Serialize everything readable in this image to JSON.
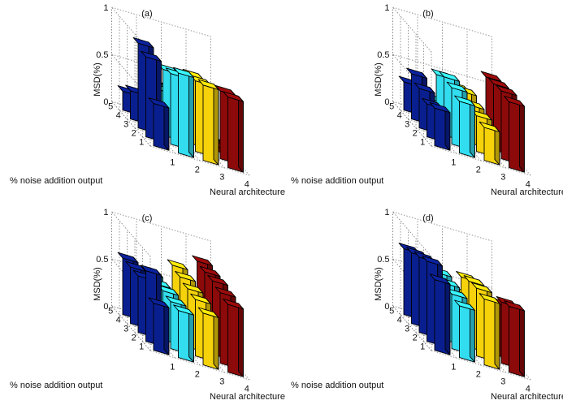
{
  "figure": {
    "axis_labels": {
      "x": "Neural architecture",
      "y": "% noise addition output",
      "z": "MSD(%)"
    }
  },
  "colors": {
    "architecture_1": "#0a1f8f",
    "architecture_2": "#33ddf0",
    "architecture_3": "#f5d20a",
    "architecture_4": "#8c0a0a",
    "edge": "#000000",
    "grid": "#7a7a7a"
  },
  "chart_data": [
    {
      "type": "bar3d",
      "title": "(a)",
      "xlabel": "Neural architecture",
      "ylabel": "% noise addition output",
      "zlabel": "MSD(%)",
      "x_ticks": [
        "1",
        "2",
        "3",
        "4"
      ],
      "y_ticks": [
        "1",
        "2",
        "3",
        "4",
        "5"
      ],
      "z_ticks": [
        "0",
        "0.5",
        "1"
      ],
      "zlim": [
        0,
        1
      ],
      "grid": true,
      "values": [
        [
          0.45,
          0.85,
          0.9,
          0.3,
          0.2
        ],
        [
          0.85,
          0.75,
          0.7,
          0.4,
          0.4
        ],
        [
          0.8,
          0.75,
          0.72,
          0.6,
          0.55
        ],
        [
          0.75,
          0.72,
          0.05,
          0.05,
          0.05
        ]
      ]
    },
    {
      "type": "bar3d",
      "title": "(b)",
      "xlabel": "Neural architecture",
      "ylabel": "% noise addition output",
      "zlabel": "MSD(%)",
      "x_ticks": [
        "1",
        "2",
        "3",
        "4"
      ],
      "y_ticks": [
        "1",
        "2",
        "3",
        "4",
        "5"
      ],
      "z_ticks": [
        "0",
        "0.5",
        "1"
      ],
      "zlim": [
        0,
        1
      ],
      "grid": true,
      "values": [
        [
          0.4,
          0.35,
          0.42,
          0.48,
          0.3
        ],
        [
          0.55,
          0.6,
          0.62,
          0.55,
          0.2
        ],
        [
          0.35,
          0.38,
          0.4,
          0.45,
          0.4
        ],
        [
          0.7,
          0.72,
          0.7,
          0.68,
          0.1
        ]
      ]
    },
    {
      "type": "bar3d",
      "title": "(c)",
      "xlabel": "Neural architecture",
      "ylabel": "% noise addition output",
      "zlabel": "MSD(%)",
      "x_ticks": [
        "1",
        "2",
        "3",
        "4"
      ],
      "y_ticks": [
        "1",
        "2",
        "3",
        "4",
        "5"
      ],
      "z_ticks": [
        "0",
        "0.5",
        "1"
      ],
      "zlim": [
        0,
        1
      ],
      "grid": true,
      "values": [
        [
          0.5,
          0.75,
          0.6,
          0.6,
          0.6
        ],
        [
          0.5,
          0.5,
          0.52,
          0.5,
          0.52
        ],
        [
          0.55,
          0.6,
          0.62,
          0.65,
          0.68
        ],
        [
          0.72,
          0.75,
          0.78,
          0.78,
          0.8
        ]
      ]
    },
    {
      "type": "bar3d",
      "title": "(d)",
      "xlabel": "Neural architecture",
      "ylabel": "% noise addition output",
      "zlabel": "MSD(%)",
      "x_ticks": [
        "1",
        "2",
        "3",
        "4"
      ],
      "y_ticks": [
        "1",
        "2",
        "3",
        "4",
        "5"
      ],
      "z_ticks": [
        "0",
        "0.5",
        "1"
      ],
      "zlim": [
        0,
        1
      ],
      "grid": true,
      "values": [
        [
          0.75,
          0.85,
          0.8,
          0.75,
          0.7
        ],
        [
          0.55,
          0.58,
          0.6,
          0.62,
          0.35
        ],
        [
          0.7,
          0.72,
          0.7,
          0.65,
          0.4
        ],
        [
          0.7,
          0.65,
          0.55,
          0.4,
          0.2
        ]
      ]
    }
  ]
}
